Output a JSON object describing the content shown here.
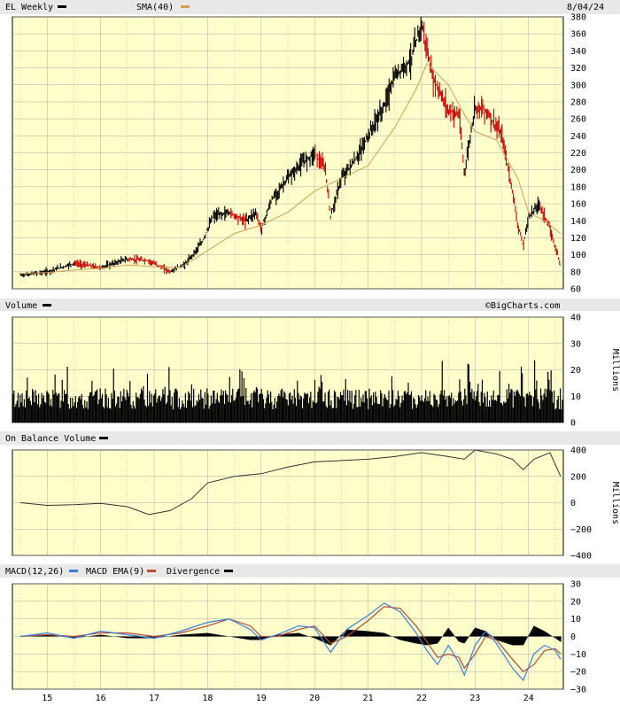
{
  "meta": {
    "ticker_label": "EL Weekly",
    "sma_label": "SMA(40)",
    "date": "8/04/24",
    "watermark": "©BigCharts.com",
    "volume_title": "Volume",
    "obv_title": "On Balance Volume",
    "macd_label": "MACD(12,26)",
    "macd_ema_label": "MACD EMA(9)",
    "divergence_label": "Divergence",
    "millions": "Millions"
  },
  "colors": {
    "plot_bg": "#ffffcc",
    "price": "#000000",
    "price_down": "#cc0000",
    "sma": "#d4a050",
    "macd": "#3a7fe0",
    "macd_ema": "#b84a30",
    "grid": "#a8a8a8"
  },
  "x_axis": {
    "labels": [
      "15",
      "16",
      "17",
      "18",
      "19",
      "20",
      "21",
      "22",
      "23",
      "24"
    ]
  },
  "chart_data": [
    {
      "type": "line",
      "title": "EL Weekly",
      "ylim": [
        60,
        380
      ],
      "yticks": [
        60,
        80,
        100,
        120,
        140,
        160,
        180,
        200,
        220,
        240,
        260,
        280,
        300,
        320,
        340,
        360,
        380
      ],
      "series": [
        {
          "name": "EL Weekly",
          "x": [
            2014.5,
            2015.0,
            2015.5,
            2016.0,
            2016.5,
            2016.9,
            2017.3,
            2017.6,
            2017.9,
            2018.1,
            2018.4,
            2018.7,
            2018.9,
            2019.0,
            2019.2,
            2019.5,
            2019.8,
            2020.0,
            2020.2,
            2020.3,
            2020.5,
            2020.8,
            2021.0,
            2021.3,
            2021.5,
            2021.8,
            2021.9,
            2022.0,
            2022.2,
            2022.5,
            2022.7,
            2022.8,
            2023.0,
            2023.2,
            2023.5,
            2023.7,
            2023.8,
            2023.9,
            2024.0,
            2024.2,
            2024.4,
            2024.6
          ],
          "values": [
            76,
            80,
            90,
            85,
            95,
            93,
            80,
            90,
            115,
            145,
            150,
            140,
            150,
            130,
            165,
            190,
            210,
            220,
            200,
            145,
            190,
            215,
            240,
            275,
            310,
            330,
            350,
            372,
            310,
            270,
            265,
            195,
            275,
            270,
            240,
            175,
            135,
            110,
            145,
            160,
            130,
            88
          ]
        },
        {
          "name": "SMA(40)",
          "x": [
            2014.5,
            2015.0,
            2015.5,
            2016.0,
            2016.5,
            2017.0,
            2017.5,
            2018.0,
            2018.5,
            2019.0,
            2019.5,
            2020.0,
            2020.5,
            2021.0,
            2021.5,
            2021.9,
            2022.1,
            2022.5,
            2022.8,
            2023.0,
            2023.4,
            2023.8,
            2024.0,
            2024.3,
            2024.6
          ],
          "values": [
            78,
            79,
            82,
            84,
            88,
            86,
            85,
            105,
            125,
            135,
            150,
            175,
            190,
            205,
            250,
            295,
            325,
            300,
            265,
            245,
            235,
            190,
            150,
            140,
            125
          ]
        }
      ]
    },
    {
      "type": "bar",
      "title": "Volume",
      "ylabel": "Millions",
      "ylim": [
        0,
        40
      ],
      "yticks": [
        0,
        10,
        20,
        30,
        40
      ]
    },
    {
      "type": "line",
      "title": "On Balance Volume",
      "ylabel": "Millions",
      "ylim": [
        -400,
        400
      ],
      "yticks": [
        -400,
        -200,
        0,
        200,
        400
      ],
      "series": [
        {
          "name": "On Balance Volume",
          "x": [
            2014.5,
            2015.0,
            2015.5,
            2016.0,
            2016.5,
            2016.9,
            2017.3,
            2017.7,
            2018.0,
            2018.5,
            2019.0,
            2019.5,
            2020.0,
            2020.5,
            2021.0,
            2021.5,
            2022.0,
            2022.5,
            2022.8,
            2023.0,
            2023.4,
            2023.7,
            2023.9,
            2024.1,
            2024.4,
            2024.6
          ],
          "values": [
            0,
            -20,
            -15,
            -5,
            -30,
            -90,
            -60,
            30,
            150,
            200,
            220,
            270,
            310,
            320,
            330,
            350,
            380,
            350,
            330,
            400,
            370,
            330,
            250,
            330,
            380,
            200
          ]
        }
      ]
    },
    {
      "type": "line",
      "title": "MACD(12,26)",
      "ylim": [
        -30,
        30
      ],
      "yticks": [
        -30,
        -20,
        -10,
        0,
        10,
        20,
        30
      ],
      "series": [
        {
          "name": "MACD(12,26)",
          "x": [
            2014.5,
            2015.0,
            2015.5,
            2016.0,
            2016.5,
            2017.0,
            2017.5,
            2018.0,
            2018.4,
            2018.8,
            2019.0,
            2019.3,
            2019.7,
            2020.0,
            2020.3,
            2020.6,
            2021.0,
            2021.3,
            2021.6,
            2021.9,
            2022.1,
            2022.3,
            2022.5,
            2022.7,
            2022.8,
            2023.0,
            2023.2,
            2023.4,
            2023.7,
            2023.9,
            2024.1,
            2024.3,
            2024.5,
            2024.6
          ],
          "values": [
            0,
            2,
            -1,
            3,
            1,
            -1,
            3,
            8,
            10,
            4,
            -2,
            1,
            6,
            5,
            -9,
            4,
            12,
            19,
            14,
            2,
            -8,
            -16,
            -5,
            -15,
            -22,
            -5,
            3,
            -4,
            -18,
            -25,
            -10,
            -5,
            -8,
            -13
          ]
        },
        {
          "name": "MACD EMA(9)",
          "x": [
            2014.5,
            2015.0,
            2015.5,
            2016.0,
            2016.5,
            2017.0,
            2017.5,
            2018.0,
            2018.4,
            2018.8,
            2019.0,
            2019.3,
            2019.7,
            2020.0,
            2020.3,
            2020.6,
            2021.0,
            2021.3,
            2021.6,
            2021.9,
            2022.1,
            2022.3,
            2022.5,
            2022.7,
            2022.8,
            2023.0,
            2023.2,
            2023.4,
            2023.7,
            2023.9,
            2024.1,
            2024.3,
            2024.5,
            2024.6
          ],
          "values": [
            0,
            1,
            0,
            2,
            2,
            0,
            2,
            6,
            10,
            6,
            0,
            0,
            4,
            6,
            -4,
            0,
            9,
            17,
            16,
            6,
            -3,
            -12,
            -10,
            -12,
            -18,
            -10,
            0,
            -2,
            -13,
            -20,
            -16,
            -8,
            -7,
            -10
          ]
        }
      ]
    }
  ]
}
